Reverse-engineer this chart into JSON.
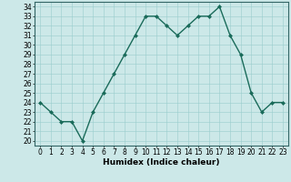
{
  "title": "",
  "xlabel": "Humidex (Indice chaleur)",
  "x": [
    0,
    1,
    2,
    3,
    4,
    5,
    6,
    7,
    8,
    9,
    10,
    11,
    12,
    13,
    14,
    15,
    16,
    17,
    18,
    19,
    20,
    21,
    22,
    23
  ],
  "y": [
    24,
    23,
    22,
    22,
    20,
    23,
    25,
    27,
    29,
    31,
    33,
    33,
    32,
    31,
    32,
    33,
    33,
    34,
    31,
    29,
    25,
    23,
    24,
    24
  ],
  "line_color": "#1a6b5a",
  "marker": "D",
  "marker_size": 2.0,
  "bg_color": "#cce8e8",
  "grid_color": "#99cccc",
  "ylim": [
    19.5,
    34.5
  ],
  "yticks": [
    20,
    21,
    22,
    23,
    24,
    25,
    26,
    27,
    28,
    29,
    30,
    31,
    32,
    33,
    34
  ],
  "xticks": [
    0,
    1,
    2,
    3,
    4,
    5,
    6,
    7,
    8,
    9,
    10,
    11,
    12,
    13,
    14,
    15,
    16,
    17,
    18,
    19,
    20,
    21,
    22,
    23
  ],
  "tick_fontsize": 5.5,
  "label_fontsize": 6.5,
  "line_width": 1.0
}
